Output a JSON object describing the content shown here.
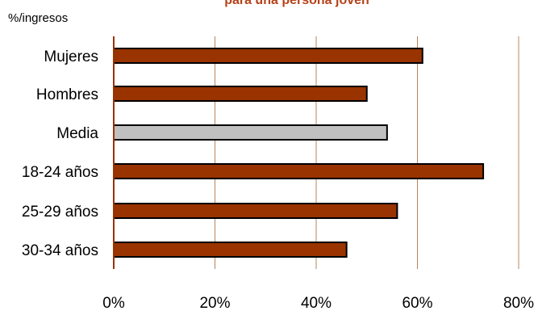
{
  "chart_data": {
    "type": "bar",
    "orientation": "horizontal",
    "title": "para una persona joven",
    "ylabel": "%/ingresos",
    "xlabel": "",
    "categories": [
      "Mujeres",
      "Hombres",
      "Media",
      "18-24 años",
      "25-29 años",
      "30-34 años"
    ],
    "values": [
      61,
      50,
      54,
      73,
      56,
      46
    ],
    "highlight_category": "Media",
    "xlim": [
      0,
      80
    ],
    "x_ticks": [
      "0%",
      "20%",
      "40%",
      "60%",
      "80%"
    ],
    "x_tick_values": [
      0,
      20,
      40,
      60,
      80
    ],
    "grid": "vertical",
    "colors": {
      "bar": "#993300",
      "highlight_bar": "#c0c0c0",
      "bar_border": "#000000",
      "grid": "#b8845a",
      "axis": "#993300",
      "title": "#b5421a"
    }
  }
}
